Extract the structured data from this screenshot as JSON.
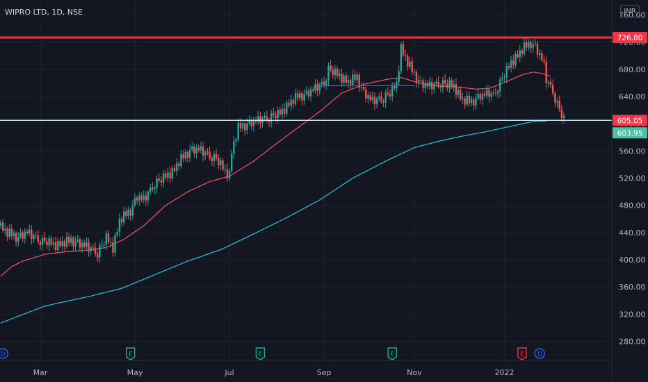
{
  "chart_data": {
    "type": "candlestick",
    "title": "WIPRO LTD, 1D, NSE",
    "currency": "INR",
    "y_ticks": [
      760,
      720,
      680,
      640,
      600,
      560,
      520,
      480,
      440,
      400,
      360,
      320,
      280
    ],
    "ylim": [
      253,
      782
    ],
    "x_ticks": [
      "Mar",
      "May",
      "Jul",
      "Sep",
      "Nov",
      "2022"
    ],
    "x_tick_index": [
      18,
      61,
      104,
      147,
      188,
      229
    ],
    "bar_count": 270,
    "candle_anchors": [
      [
        0,
        450
      ],
      [
        3,
        440
      ],
      [
        8,
        432
      ],
      [
        12,
        440
      ],
      [
        18,
        428
      ],
      [
        25,
        422
      ],
      [
        32,
        428
      ],
      [
        40,
        418
      ],
      [
        44,
        410
      ],
      [
        48,
        432
      ],
      [
        51,
        418
      ],
      [
        54,
        458
      ],
      [
        59,
        472
      ],
      [
        62,
        492
      ],
      [
        65,
        488
      ],
      [
        70,
        512
      ],
      [
        74,
        520
      ],
      [
        78,
        530
      ],
      [
        82,
        548
      ],
      [
        86,
        560
      ],
      [
        90,
        562
      ],
      [
        94,
        555
      ],
      [
        98,
        548
      ],
      [
        102,
        530
      ],
      [
        104,
        526
      ],
      [
        105,
        560
      ],
      [
        108,
        594
      ],
      [
        113,
        600
      ],
      [
        118,
        606
      ],
      [
        123,
        610
      ],
      [
        127,
        615
      ],
      [
        131,
        630
      ],
      [
        135,
        640
      ],
      [
        139,
        643
      ],
      [
        143,
        652
      ],
      [
        147,
        660
      ],
      [
        149,
        680
      ],
      [
        153,
        672
      ],
      [
        158,
        662
      ],
      [
        162,
        668
      ],
      [
        165,
        645
      ],
      [
        169,
        633
      ],
      [
        174,
        638
      ],
      [
        177,
        645
      ],
      [
        180,
        658
      ],
      [
        182,
        712
      ],
      [
        185,
        690
      ],
      [
        188,
        672
      ],
      [
        191,
        658
      ],
      [
        195,
        655
      ],
      [
        200,
        660
      ],
      [
        206,
        655
      ],
      [
        210,
        635
      ],
      [
        214,
        632
      ],
      [
        218,
        640
      ],
      [
        222,
        645
      ],
      [
        224,
        642
      ],
      [
        227,
        660
      ],
      [
        232,
        690
      ],
      [
        235,
        702
      ],
      [
        238,
        712
      ],
      [
        241,
        718
      ],
      [
        243,
        712
      ],
      [
        246,
        695
      ],
      [
        247,
        685
      ],
      [
        248,
        665
      ],
      [
        251,
        648
      ],
      [
        253,
        628
      ],
      [
        256,
        605
      ]
    ],
    "candle_pattern": [
      9,
      -7,
      5,
      -11,
      14,
      -4,
      8,
      -13,
      3,
      11,
      -9,
      6,
      -2,
      12,
      -10,
      4,
      7,
      -6,
      -12,
      10,
      2,
      -8,
      13,
      -3,
      6,
      -14
    ],
    "series": [
      {
        "name": "",
        "color": "#f7525f",
        "anchors": [
          [
            0,
            376
          ],
          [
            5,
            390
          ],
          [
            10,
            398
          ],
          [
            20,
            408
          ],
          [
            30,
            412
          ],
          [
            40,
            414
          ],
          [
            48,
            418
          ],
          [
            56,
            430
          ],
          [
            65,
            450
          ],
          [
            75,
            480
          ],
          [
            85,
            500
          ],
          [
            95,
            515
          ],
          [
            104,
            523
          ],
          [
            115,
            545
          ],
          [
            125,
            570
          ],
          [
            135,
            594
          ],
          [
            145,
            618
          ],
          [
            155,
            645
          ],
          [
            165,
            658
          ],
          [
            175,
            665
          ],
          [
            182,
            668
          ],
          [
            190,
            660
          ],
          [
            200,
            655
          ],
          [
            208,
            654
          ],
          [
            216,
            651
          ],
          [
            222,
            652
          ],
          [
            230,
            662
          ],
          [
            237,
            672
          ],
          [
            242,
            676
          ],
          [
            246,
            674
          ],
          [
            250,
            670
          ]
        ]
      },
      {
        "name": "",
        "color": "#26c6da",
        "anchors": [
          [
            0,
            307
          ],
          [
            20,
            332
          ],
          [
            40,
            346
          ],
          [
            55,
            358
          ],
          [
            70,
            378
          ],
          [
            85,
            398
          ],
          [
            100,
            415
          ],
          [
            115,
            438
          ],
          [
            130,
            462
          ],
          [
            145,
            488
          ],
          [
            160,
            520
          ],
          [
            175,
            545
          ],
          [
            188,
            565
          ],
          [
            200,
            575
          ],
          [
            210,
            582
          ],
          [
            220,
            588
          ],
          [
            230,
            595
          ],
          [
            240,
            602
          ],
          [
            244,
            603.95
          ],
          [
            248,
            603.95
          ]
        ]
      }
    ],
    "horizontal_lines": [
      {
        "value": 726.8,
        "color": "#f23645",
        "label": "726.80"
      },
      {
        "value": 605.05,
        "color": "#b2ebf2",
        "label": "605.05"
      }
    ],
    "price_badges": [
      {
        "value": 726.8,
        "label": "726.80",
        "color": "#f23645"
      },
      {
        "value": 605.05,
        "label": "605.05",
        "color": "#f23645"
      },
      {
        "value": 603.95,
        "label": "603.95",
        "color": "#4fbfa8"
      }
    ],
    "trend_segment": {
      "from_index": 146,
      "to_index": 188,
      "value": 656,
      "color": "#2962ff"
    },
    "events": [
      {
        "index": 1,
        "label": "D",
        "kind": "dividend",
        "color": "#2962ff"
      },
      {
        "index": 59,
        "label": "E",
        "kind": "earnings",
        "color": "#22ab94"
      },
      {
        "index": 118,
        "label": "E",
        "kind": "earnings",
        "color": "#22ab94"
      },
      {
        "index": 178,
        "label": "E",
        "kind": "earnings",
        "color": "#22ab94"
      },
      {
        "index": 237,
        "label": "E",
        "kind": "earnings",
        "color": "#f23645"
      },
      {
        "index": 245,
        "label": "D",
        "kind": "dividend",
        "color": "#2962ff"
      }
    ],
    "colors": {
      "up": "#26a69a",
      "down": "#ef5350",
      "grid": "#1f232e",
      "background": "#131722"
    }
  }
}
